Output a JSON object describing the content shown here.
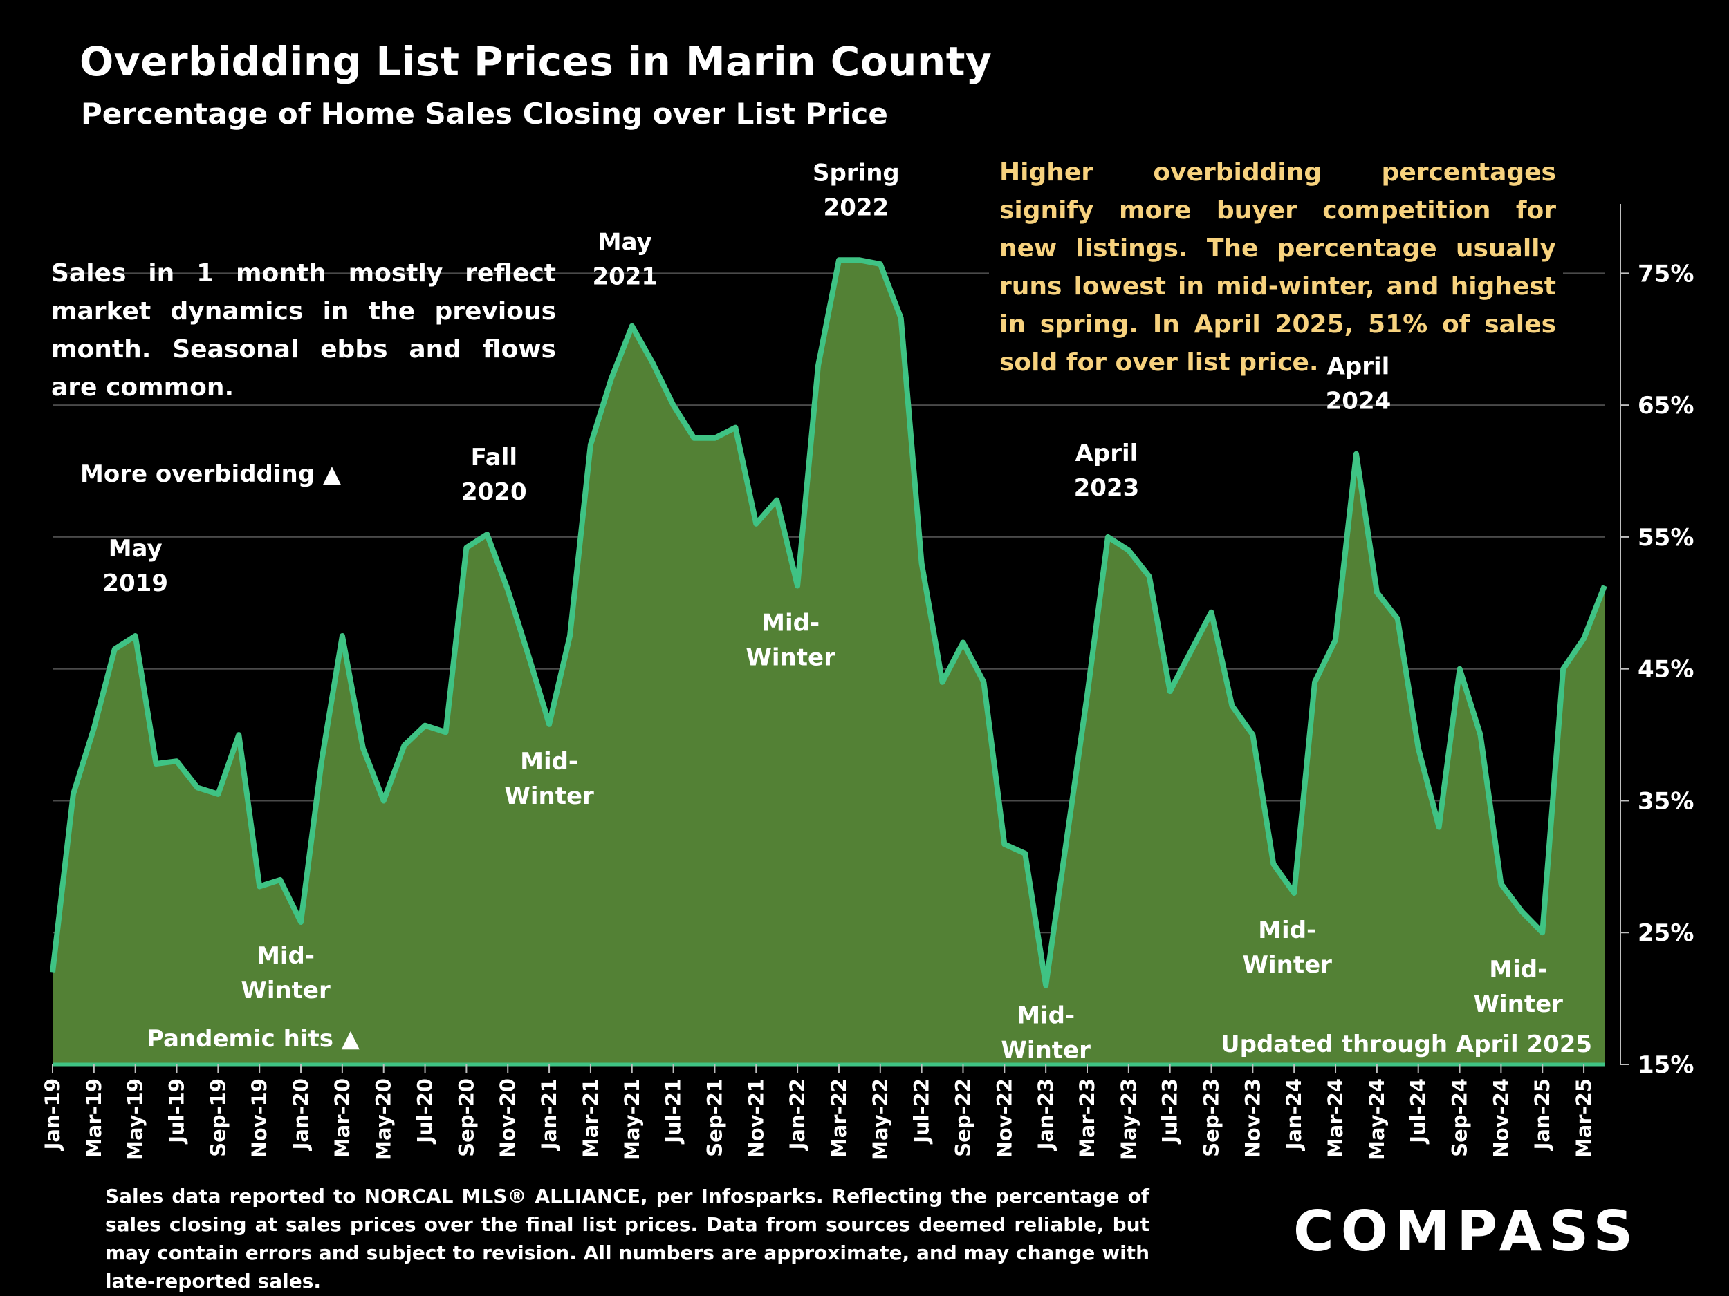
{
  "header": {
    "title": "Overbidding List Prices in Marin County",
    "subtitle": "Percentage of Home Sales Closing over List Price"
  },
  "notes": {
    "left": "Sales in 1 month mostly reflect market dynamics in the previous month. Seasonal ebbs and flows are common.",
    "right": "Higher overbidding percentages signify more buyer competition for new listings. The percentage usually runs lowest in mid-winter, and highest in spring. In April 2025, 51% of sales sold for over list price.",
    "more_overbidding": "More overbidding ▲",
    "pandemic": "Pandemic hits ▲",
    "updated": "Updated through April 2025"
  },
  "footnote": "Sales data reported to NORCAL MLS® ALLIANCE, per Infosparks. Reflecting the percentage of sales closing at sales prices over the final list prices. Data from sources deemed reliable, but may contain errors and subject to revision. All numbers are approximate, and may change with late-reported sales.",
  "brand": "COMPASS",
  "colors": {
    "area_fill": "#538135",
    "line": "#3fc384",
    "note_text": "#f7d27e",
    "grid": "#4a4a4a",
    "background": "#000000"
  },
  "chart_data": {
    "type": "area",
    "x": [
      "Jan-19",
      "Feb-19",
      "Mar-19",
      "Apr-19",
      "May-19",
      "Jun-19",
      "Jul-19",
      "Aug-19",
      "Sep-19",
      "Oct-19",
      "Nov-19",
      "Dec-19",
      "Jan-20",
      "Feb-20",
      "Mar-20",
      "Apr-20",
      "May-20",
      "Jun-20",
      "Jul-20",
      "Aug-20",
      "Sep-20",
      "Oct-20",
      "Nov-20",
      "Dec-20",
      "Jan-21",
      "Feb-21",
      "Mar-21",
      "Apr-21",
      "May-21",
      "Jun-21",
      "Jul-21",
      "Aug-21",
      "Sep-21",
      "Oct-21",
      "Nov-21",
      "Dec-21",
      "Jan-22",
      "Feb-22",
      "Mar-22",
      "Apr-22",
      "May-22",
      "Jun-22",
      "Jul-22",
      "Aug-22",
      "Sep-22",
      "Oct-22",
      "Nov-22",
      "Dec-22",
      "Jan-23",
      "Feb-23",
      "Mar-23",
      "Apr-23",
      "May-23",
      "Jun-23",
      "Jul-23",
      "Aug-23",
      "Sep-23",
      "Oct-23",
      "Nov-23",
      "Dec-23",
      "Jan-24",
      "Feb-24",
      "Mar-24",
      "Apr-24",
      "May-24",
      "Jun-24",
      "Jul-24",
      "Aug-24",
      "Sep-24",
      "Oct-24",
      "Nov-24",
      "Dec-24",
      "Jan-25",
      "Feb-25",
      "Mar-25",
      "Apr-25"
    ],
    "x_tick_labels": [
      "Jan-19",
      "Mar-19",
      "May-19",
      "Jul-19",
      "Sep-19",
      "Nov-19",
      "Jan-20",
      "Mar-20",
      "May-20",
      "Jul-20",
      "Sep-20",
      "Nov-20",
      "Jan-21",
      "Mar-21",
      "May-21",
      "Jul-21",
      "Sep-21",
      "Nov-21",
      "Jan-22",
      "Mar-22",
      "May-22",
      "Jul-22",
      "Sep-22",
      "Nov-22",
      "Jan-23",
      "Mar-23",
      "May-23",
      "Jul-23",
      "Sep-23",
      "Nov-23",
      "Jan-24",
      "Mar-24",
      "May-24",
      "Jul-24",
      "Sep-24",
      "Nov-24",
      "Jan-25",
      "Mar-25"
    ],
    "values": [
      22,
      35.5,
      40.5,
      46.5,
      47.5,
      37.8,
      38,
      36,
      35.5,
      40,
      28.5,
      29,
      25.8,
      38,
      47.5,
      39,
      35,
      39.2,
      40.7,
      40.2,
      54.2,
      55.2,
      51,
      46,
      40.8,
      47.5,
      62,
      67,
      71,
      68.2,
      65,
      62.5,
      62.5,
      63.3,
      56,
      57.8,
      51.3,
      68,
      76,
      76,
      75.7,
      71.6,
      53,
      44,
      47,
      44,
      31.7,
      31,
      21,
      32,
      43,
      55,
      54,
      52,
      43.3,
      46.3,
      49.3,
      42.2,
      40,
      30.2,
      28,
      44,
      47.2,
      61.3,
      50.8,
      48.8,
      39,
      33,
      45,
      40,
      28.7,
      26.6,
      25,
      45,
      47.3,
      51.3
    ],
    "y_ticks": [
      15,
      25,
      35,
      45,
      55,
      65,
      75
    ],
    "y_tick_labels": [
      "15%",
      "25%",
      "35%",
      "45%",
      "55%",
      "65%",
      "75%"
    ],
    "ylim": [
      15,
      80
    ],
    "grid": true,
    "annotations": [
      {
        "lines": [
          "May",
          "2019"
        ],
        "x": "May-19",
        "y": 47.5
      },
      {
        "lines": [
          "Mid-",
          "Winter"
        ],
        "x": "Jan-20",
        "y": 25.8
      },
      {
        "lines": [
          "Fall",
          "2020"
        ],
        "x": "Oct-20",
        "y": 55.2
      },
      {
        "lines": [
          "Mid-",
          "Winter"
        ],
        "x": "Jan-21",
        "y": 40.8
      },
      {
        "lines": [
          "May",
          "2021"
        ],
        "x": "May-21",
        "y": 71
      },
      {
        "lines": [
          "Mid-",
          "Winter"
        ],
        "x": "Jan-22",
        "y": 51.3
      },
      {
        "lines": [
          "Spring",
          "2022"
        ],
        "x": "Apr-22",
        "y": 76
      },
      {
        "lines": [
          "Mid-",
          "Winter"
        ],
        "x": "Jan-23",
        "y": 21
      },
      {
        "lines": [
          "April",
          "2023"
        ],
        "x": "Apr-23",
        "y": 55
      },
      {
        "lines": [
          "Mid-",
          "Winter"
        ],
        "x": "Jan-24",
        "y": 28
      },
      {
        "lines": [
          "April",
          "2024"
        ],
        "x": "Apr-24",
        "y": 61.3
      },
      {
        "lines": [
          "Mid-",
          "Winter"
        ],
        "x": "Jan-25",
        "y": 25
      }
    ]
  }
}
